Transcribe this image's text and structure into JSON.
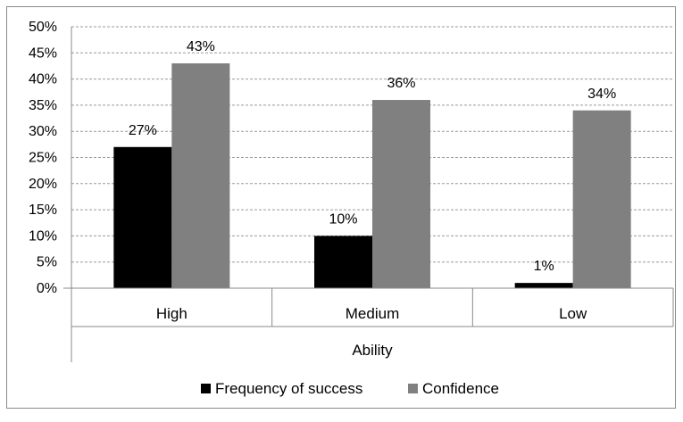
{
  "chart_data": {
    "type": "bar",
    "categories": [
      "High",
      "Medium",
      "Low"
    ],
    "series": [
      {
        "name": "Frequency of success",
        "values": [
          27,
          10,
          1
        ],
        "labels": [
          "27%",
          "10%",
          "1%"
        ],
        "color": "#000000"
      },
      {
        "name": "Confidence",
        "values": [
          43,
          36,
          34
        ],
        "labels": [
          "43%",
          "36%",
          "34%"
        ],
        "color": "#808080"
      }
    ],
    "xlabel": "Ability",
    "ylabel": "",
    "ylim": [
      0,
      50
    ],
    "yticks": [
      0,
      5,
      10,
      15,
      20,
      25,
      30,
      35,
      40,
      45,
      50
    ],
    "ytick_labels": [
      "0%",
      "5%",
      "10%",
      "15%",
      "20%",
      "25%",
      "30%",
      "35%",
      "40%",
      "45%",
      "50%"
    ],
    "grid": true,
    "grid_style": "dashed",
    "legend_position": "bottom"
  }
}
